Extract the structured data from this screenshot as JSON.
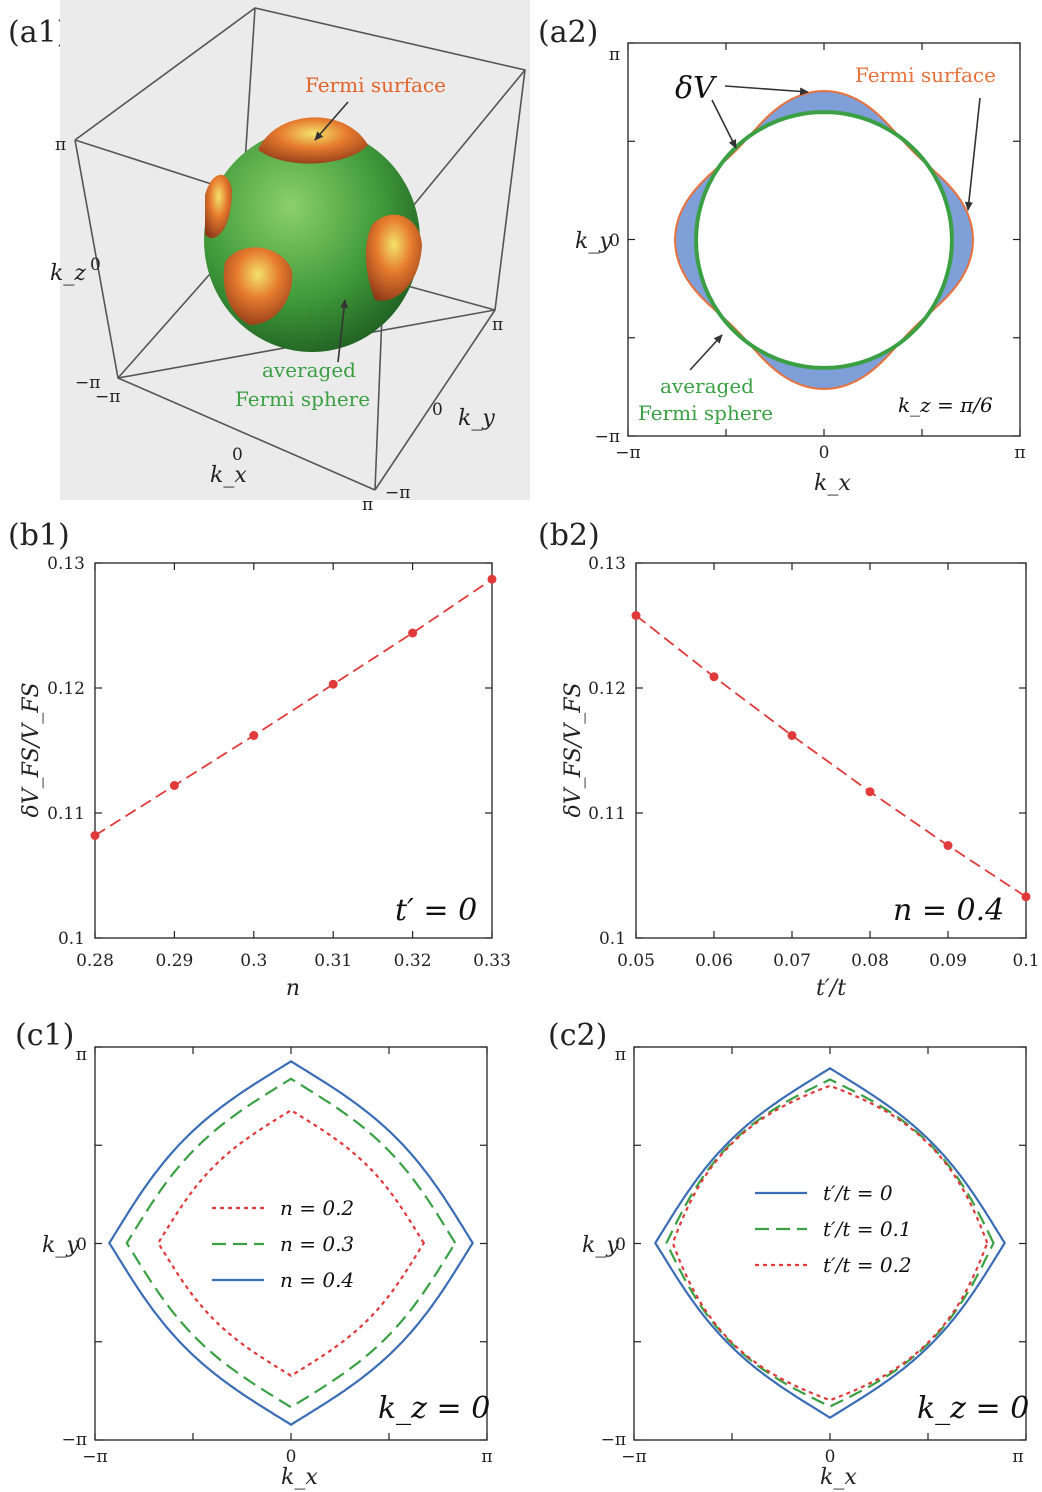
{
  "panels": {
    "a1": "(a1)",
    "a2": "(a2)",
    "b1": "(b1)",
    "b2": "(b2)",
    "c1": "(c1)",
    "c2": "(c2)"
  },
  "a1": {
    "fermi_surface": "Fermi surface",
    "averaged_line1": "averaged",
    "averaged_line2": "Fermi sphere",
    "kz_label": "k_z",
    "ky_label": "k_y",
    "kx_label": "k_x",
    "ticks": {
      "pi": "π",
      "zero": "0",
      "minus_pi": "−π"
    },
    "colors": {
      "sphere": "#4aa84a",
      "surface": "#e0642a"
    }
  },
  "a2": {
    "delta_v": "δV",
    "fermi_surface": "Fermi surface",
    "averaged_line1": "averaged",
    "averaged_line2": "Fermi sphere",
    "kz_text": "k_z = π/6",
    "colors": {
      "fill": "#7f9fd8",
      "surface": "#e8703a",
      "sphere": "#3aa043"
    }
  },
  "chart_data": [
    {
      "id": "b1",
      "type": "line",
      "x": [
        0.28,
        0.29,
        0.3,
        0.31,
        0.32,
        0.33
      ],
      "y": [
        0.1082,
        0.1122,
        0.1162,
        0.1203,
        0.1244,
        0.1287
      ],
      "xlim": [
        0.28,
        0.33
      ],
      "ylim": [
        0.1,
        0.13
      ],
      "xticks": [
        "0.28",
        "0.29",
        "0.3",
        "0.31",
        "0.32",
        "0.33"
      ],
      "yticks": [
        "0.1",
        "0.11",
        "0.12",
        "0.13"
      ],
      "xlabel": "n",
      "ylabel": "δV_FS/V_FS",
      "annotation": "t′ = 0",
      "color": "#e03a3a"
    },
    {
      "id": "b2",
      "type": "line",
      "x": [
        0.05,
        0.06,
        0.07,
        0.08,
        0.09,
        0.1
      ],
      "y": [
        0.1258,
        0.1209,
        0.1162,
        0.1117,
        0.1074,
        0.1033
      ],
      "xlim": [
        0.05,
        0.1
      ],
      "ylim": [
        0.1,
        0.13
      ],
      "xticks": [
        "0.05",
        "0.06",
        "0.07",
        "0.08",
        "0.09",
        "0.1"
      ],
      "yticks": [
        "0.1",
        "0.11",
        "0.12",
        "0.13"
      ],
      "xlabel": "t′/t",
      "ylabel": "δV_FS/V_FS",
      "annotation": "n = 0.4",
      "color": "#e03a3a"
    },
    {
      "id": "c1",
      "type": "line",
      "xlabel": "k_x",
      "ylabel": "k_y",
      "xticks": [
        "−π",
        "0",
        "π"
      ],
      "yticks": [
        "−π",
        "0",
        "π"
      ],
      "annotation": "k_z = 0",
      "series": [
        {
          "name": "n = 0.2",
          "radius": 1.9,
          "color": "#e03a3a",
          "dash": "dotted"
        },
        {
          "name": "n = 0.3",
          "radius": 2.35,
          "color": "#3aa043",
          "dash": "dashed"
        },
        {
          "name": "n = 0.4",
          "radius": 2.6,
          "color": "#3a6db5",
          "dash": "solid"
        }
      ]
    },
    {
      "id": "c2",
      "type": "line",
      "xlabel": "k_x",
      "ylabel": "k_y",
      "xticks": [
        "−π",
        "0",
        "π"
      ],
      "yticks": [
        "−π",
        "0",
        "π"
      ],
      "annotation": "k_z = 0",
      "series": [
        {
          "name": "t′/t = 0",
          "color": "#3a6db5",
          "dash": "solid"
        },
        {
          "name": "t′/t = 0.1",
          "color": "#3aa043",
          "dash": "dashed"
        },
        {
          "name": "t′/t = 0.2",
          "color": "#e03a3a",
          "dash": "dotted"
        }
      ]
    }
  ]
}
